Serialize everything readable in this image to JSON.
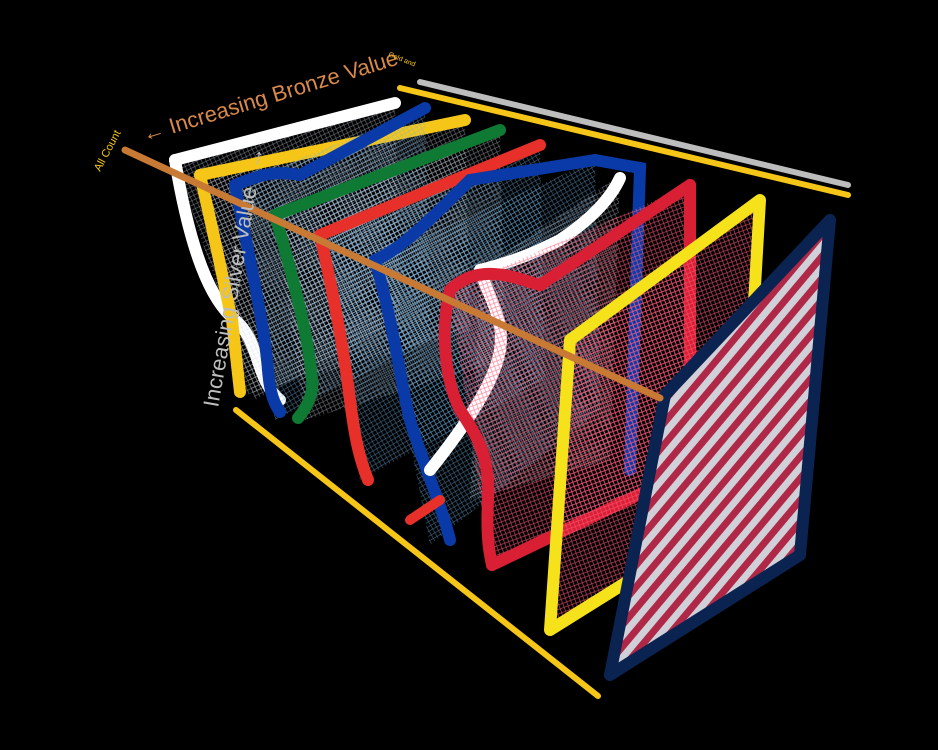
{
  "labels": {
    "bronze_axis": "Increasing Bronze Value",
    "silver_axis": "Increasing Silver Value",
    "all_count": "All Count",
    "gold_axis": "Gold and"
  },
  "colors": {
    "background": "#000000",
    "white": "#ffffff",
    "yellow": "#f5c518",
    "blue": "#0a3aa8",
    "green": "#0e7a33",
    "red": "#e8302a",
    "crimson": "#d91f34",
    "navy": "#0a2350",
    "bronze": "#c87a35",
    "silver": "#bdbdbd"
  },
  "chart_data": {
    "type": "other",
    "description_items": [
      "white",
      "yellow",
      "blue",
      "green",
      "red",
      "blue",
      "white",
      "red",
      "yellow",
      "navy"
    ],
    "axes": [
      "Increasing Bronze Value",
      "Increasing Silver Value",
      "All Count"
    ]
  }
}
